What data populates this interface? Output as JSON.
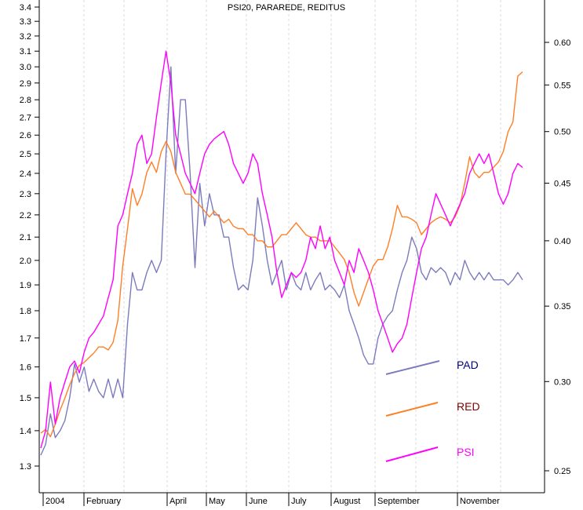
{
  "chart_data": {
    "type": "line",
    "title": "PSI20, PARAREDE, REDITUS",
    "xlabel": "",
    "ylabel": "",
    "x_labels": [
      "2004",
      "February",
      "April",
      "May",
      "June",
      "July",
      "August",
      "September",
      "November"
    ],
    "left_axis": {
      "scale": "log",
      "ylim": [
        1.25,
        3.4
      ],
      "ticks": [
        "1.3",
        "1.4",
        "1.5",
        "1.6",
        "1.7",
        "1.8",
        "1.9",
        "2.0",
        "2.1",
        "2.2",
        "2.3",
        "2.4",
        "2.5",
        "2.6",
        "2.7",
        "2.8",
        "2.9",
        "3.0",
        "3.1",
        "3.2",
        "3.3",
        "3.4"
      ],
      "used_by": [
        "PAD",
        "PSI"
      ]
    },
    "right_axis": {
      "scale": "log",
      "ylim": [
        0.245,
        0.63
      ],
      "ticks": [
        "0.25",
        "0.30",
        "0.35",
        "0.40",
        "0.45",
        "0.50",
        "0.55",
        "0.60"
      ],
      "used_by": [
        "RED"
      ]
    },
    "grid": "vertical dashed at month starts",
    "legend_position": "bottom-right",
    "x_range": [
      0,
      100
    ],
    "series": [
      {
        "name": "PAD",
        "label_color": "#000080",
        "line_color": "#7b7bbd",
        "axis": "left",
        "points": [
          [
            0,
            1.33
          ],
          [
            1,
            1.36
          ],
          [
            2,
            1.45
          ],
          [
            3,
            1.38
          ],
          [
            4,
            1.4
          ],
          [
            5,
            1.43
          ],
          [
            6,
            1.5
          ],
          [
            7,
            1.61
          ],
          [
            8,
            1.55
          ],
          [
            9,
            1.6
          ],
          [
            10,
            1.52
          ],
          [
            11,
            1.56
          ],
          [
            12,
            1.52
          ],
          [
            13,
            1.5
          ],
          [
            14,
            1.56
          ],
          [
            15,
            1.5
          ],
          [
            16,
            1.56
          ],
          [
            17,
            1.5
          ],
          [
            18,
            1.75
          ],
          [
            19,
            1.95
          ],
          [
            20,
            1.88
          ],
          [
            21,
            1.88
          ],
          [
            22,
            1.95
          ],
          [
            23,
            2.0
          ],
          [
            24,
            1.95
          ],
          [
            25,
            2.0
          ],
          [
            26,
            2.5
          ],
          [
            27,
            3.0
          ],
          [
            28,
            2.4
          ],
          [
            29,
            2.8
          ],
          [
            30,
            2.8
          ],
          [
            31,
            2.4
          ],
          [
            32,
            1.97
          ],
          [
            33,
            2.35
          ],
          [
            34,
            2.15
          ],
          [
            35,
            2.3
          ],
          [
            36,
            2.2
          ],
          [
            37,
            2.2
          ],
          [
            38,
            2.1
          ],
          [
            39,
            2.1
          ],
          [
            40,
            1.97
          ],
          [
            41,
            1.88
          ],
          [
            42,
            1.9
          ],
          [
            43,
            1.88
          ],
          [
            44,
            2.0
          ],
          [
            45,
            2.28
          ],
          [
            46,
            2.15
          ],
          [
            47,
            2.0
          ],
          [
            48,
            1.9
          ],
          [
            49,
            1.95
          ],
          [
            50,
            2.0
          ],
          [
            51,
            1.88
          ],
          [
            52,
            1.95
          ],
          [
            53,
            1.9
          ],
          [
            54,
            1.88
          ],
          [
            55,
            1.95
          ],
          [
            56,
            1.88
          ],
          [
            57,
            1.92
          ],
          [
            58,
            1.95
          ],
          [
            59,
            1.88
          ],
          [
            60,
            1.9
          ],
          [
            61,
            1.88
          ],
          [
            62,
            1.85
          ],
          [
            63,
            1.9
          ],
          [
            64,
            1.8
          ],
          [
            65,
            1.75
          ],
          [
            66,
            1.7
          ],
          [
            67,
            1.64
          ],
          [
            68,
            1.61
          ],
          [
            69,
            1.61
          ],
          [
            70,
            1.7
          ],
          [
            71,
            1.75
          ],
          [
            72,
            1.78
          ],
          [
            73,
            1.8
          ],
          [
            74,
            1.88
          ],
          [
            75,
            1.95
          ],
          [
            76,
            2.0
          ],
          [
            77,
            2.1
          ],
          [
            78,
            2.05
          ],
          [
            79,
            1.95
          ],
          [
            80,
            1.92
          ],
          [
            81,
            1.97
          ],
          [
            82,
            1.95
          ],
          [
            83,
            1.97
          ],
          [
            84,
            1.95
          ],
          [
            85,
            1.9
          ],
          [
            86,
            1.95
          ],
          [
            87,
            1.92
          ],
          [
            88,
            2.0
          ],
          [
            89,
            1.95
          ],
          [
            90,
            1.92
          ],
          [
            91,
            1.95
          ],
          [
            92,
            1.92
          ],
          [
            93,
            1.95
          ],
          [
            94,
            1.92
          ],
          [
            95,
            1.92
          ],
          [
            96,
            1.92
          ],
          [
            97,
            1.9
          ],
          [
            98,
            1.92
          ],
          [
            99,
            1.95
          ],
          [
            100,
            1.92
          ]
        ]
      },
      {
        "name": "RED",
        "label_color": "#800000",
        "line_color": "#ff7f27",
        "axis": "right",
        "points": [
          [
            0,
            0.27
          ],
          [
            1,
            0.272
          ],
          [
            2,
            0.268
          ],
          [
            3,
            0.275
          ],
          [
            4,
            0.283
          ],
          [
            5,
            0.29
          ],
          [
            6,
            0.298
          ],
          [
            7,
            0.305
          ],
          [
            8,
            0.31
          ],
          [
            9,
            0.312
          ],
          [
            10,
            0.315
          ],
          [
            11,
            0.318
          ],
          [
            12,
            0.322
          ],
          [
            13,
            0.322
          ],
          [
            14,
            0.32
          ],
          [
            15,
            0.325
          ],
          [
            16,
            0.34
          ],
          [
            17,
            0.38
          ],
          [
            18,
            0.41
          ],
          [
            19,
            0.445
          ],
          [
            20,
            0.43
          ],
          [
            21,
            0.44
          ],
          [
            22,
            0.46
          ],
          [
            23,
            0.47
          ],
          [
            24,
            0.46
          ],
          [
            25,
            0.48
          ],
          [
            26,
            0.49
          ],
          [
            27,
            0.48
          ],
          [
            28,
            0.46
          ],
          [
            29,
            0.45
          ],
          [
            30,
            0.44
          ],
          [
            31,
            0.44
          ],
          [
            32,
            0.435
          ],
          [
            33,
            0.43
          ],
          [
            34,
            0.425
          ],
          [
            35,
            0.42
          ],
          [
            36,
            0.425
          ],
          [
            37,
            0.42
          ],
          [
            38,
            0.415
          ],
          [
            39,
            0.418
          ],
          [
            40,
            0.412
          ],
          [
            41,
            0.41
          ],
          [
            42,
            0.41
          ],
          [
            43,
            0.405
          ],
          [
            44,
            0.405
          ],
          [
            45,
            0.4
          ],
          [
            46,
            0.4
          ],
          [
            47,
            0.395
          ],
          [
            48,
            0.395
          ],
          [
            49,
            0.4
          ],
          [
            50,
            0.405
          ],
          [
            51,
            0.405
          ],
          [
            52,
            0.41
          ],
          [
            53,
            0.415
          ],
          [
            54,
            0.41
          ],
          [
            55,
            0.405
          ],
          [
            56,
            0.403
          ],
          [
            57,
            0.403
          ],
          [
            58,
            0.4
          ],
          [
            59,
            0.4
          ],
          [
            60,
            0.4
          ],
          [
            61,
            0.395
          ],
          [
            62,
            0.39
          ],
          [
            63,
            0.385
          ],
          [
            64,
            0.375
          ],
          [
            65,
            0.36
          ],
          [
            66,
            0.35
          ],
          [
            67,
            0.36
          ],
          [
            68,
            0.37
          ],
          [
            69,
            0.38
          ],
          [
            70,
            0.385
          ],
          [
            71,
            0.385
          ],
          [
            72,
            0.395
          ],
          [
            73,
            0.41
          ],
          [
            74,
            0.43
          ],
          [
            75,
            0.42
          ],
          [
            76,
            0.42
          ],
          [
            77,
            0.418
          ],
          [
            78,
            0.415
          ],
          [
            79,
            0.405
          ],
          [
            80,
            0.41
          ],
          [
            81,
            0.415
          ],
          [
            82,
            0.418
          ],
          [
            83,
            0.42
          ],
          [
            84,
            0.418
          ],
          [
            85,
            0.415
          ],
          [
            86,
            0.42
          ],
          [
            87,
            0.43
          ],
          [
            88,
            0.45
          ],
          [
            89,
            0.475
          ],
          [
            90,
            0.46
          ],
          [
            91,
            0.455
          ],
          [
            92,
            0.46
          ],
          [
            93,
            0.46
          ],
          [
            94,
            0.465
          ],
          [
            95,
            0.47
          ],
          [
            96,
            0.48
          ],
          [
            97,
            0.5
          ],
          [
            98,
            0.51
          ],
          [
            99,
            0.56
          ],
          [
            100,
            0.565
          ]
        ]
      },
      {
        "name": "PSI",
        "label_color": "#ff00ff",
        "line_color": "#ff00ff",
        "axis": "left",
        "points": [
          [
            0,
            1.35
          ],
          [
            1,
            1.4
          ],
          [
            2,
            1.55
          ],
          [
            3,
            1.42
          ],
          [
            4,
            1.5
          ],
          [
            5,
            1.55
          ],
          [
            6,
            1.6
          ],
          [
            7,
            1.62
          ],
          [
            8,
            1.58
          ],
          [
            9,
            1.65
          ],
          [
            10,
            1.7
          ],
          [
            11,
            1.72
          ],
          [
            12,
            1.75
          ],
          [
            13,
            1.78
          ],
          [
            14,
            1.85
          ],
          [
            15,
            1.92
          ],
          [
            16,
            2.15
          ],
          [
            17,
            2.2
          ],
          [
            18,
            2.3
          ],
          [
            19,
            2.4
          ],
          [
            20,
            2.55
          ],
          [
            21,
            2.6
          ],
          [
            22,
            2.45
          ],
          [
            23,
            2.5
          ],
          [
            24,
            2.7
          ],
          [
            25,
            2.9
          ],
          [
            26,
            3.1
          ],
          [
            27,
            2.9
          ],
          [
            28,
            2.6
          ],
          [
            29,
            2.5
          ],
          [
            30,
            2.4
          ],
          [
            31,
            2.35
          ],
          [
            32,
            2.3
          ],
          [
            33,
            2.4
          ],
          [
            34,
            2.5
          ],
          [
            35,
            2.55
          ],
          [
            36,
            2.58
          ],
          [
            37,
            2.6
          ],
          [
            38,
            2.62
          ],
          [
            39,
            2.55
          ],
          [
            40,
            2.45
          ],
          [
            41,
            2.4
          ],
          [
            42,
            2.35
          ],
          [
            43,
            2.4
          ],
          [
            44,
            2.5
          ],
          [
            45,
            2.45
          ],
          [
            46,
            2.3
          ],
          [
            47,
            2.2
          ],
          [
            48,
            2.1
          ],
          [
            49,
            1.95
          ],
          [
            50,
            1.85
          ],
          [
            51,
            1.9
          ],
          [
            52,
            1.95
          ],
          [
            53,
            1.93
          ],
          [
            54,
            1.95
          ],
          [
            55,
            2.0
          ],
          [
            56,
            2.1
          ],
          [
            57,
            2.05
          ],
          [
            58,
            2.15
          ],
          [
            59,
            2.05
          ],
          [
            60,
            2.1
          ],
          [
            61,
            2.0
          ],
          [
            62,
            1.95
          ],
          [
            63,
            1.9
          ],
          [
            64,
            2.0
          ],
          [
            65,
            1.95
          ],
          [
            66,
            2.05
          ],
          [
            67,
            2.0
          ],
          [
            68,
            1.95
          ],
          [
            69,
            1.88
          ],
          [
            70,
            1.8
          ],
          [
            71,
            1.75
          ],
          [
            72,
            1.7
          ],
          [
            73,
            1.65
          ],
          [
            74,
            1.68
          ],
          [
            75,
            1.7
          ],
          [
            76,
            1.75
          ],
          [
            77,
            1.85
          ],
          [
            78,
            1.95
          ],
          [
            79,
            2.05
          ],
          [
            80,
            2.1
          ],
          [
            81,
            2.2
          ],
          [
            82,
            2.3
          ],
          [
            83,
            2.25
          ],
          [
            84,
            2.2
          ],
          [
            85,
            2.15
          ],
          [
            86,
            2.2
          ],
          [
            87,
            2.25
          ],
          [
            88,
            2.3
          ],
          [
            89,
            2.4
          ],
          [
            90,
            2.45
          ],
          [
            91,
            2.5
          ],
          [
            92,
            2.45
          ],
          [
            93,
            2.5
          ],
          [
            94,
            2.4
          ],
          [
            95,
            2.3
          ],
          [
            96,
            2.25
          ],
          [
            97,
            2.3
          ],
          [
            98,
            2.4
          ],
          [
            99,
            2.45
          ],
          [
            100,
            2.43
          ]
        ]
      }
    ]
  }
}
